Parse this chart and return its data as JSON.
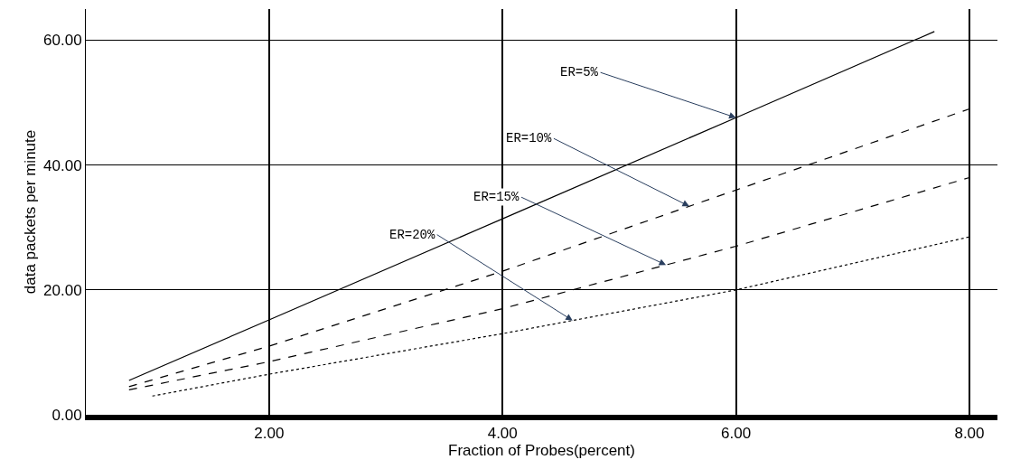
{
  "chart_data": {
    "type": "line",
    "xlabel": "Fraction of Probes(percent)",
    "ylabel": "data packets per minute",
    "xlim": [
      0.43,
      8.24
    ],
    "ylim": [
      0,
      65
    ],
    "xticks": [
      {
        "value": 2,
        "label": "2.00"
      },
      {
        "value": 4,
        "label": "4.00"
      },
      {
        "value": 6,
        "label": "6.00"
      },
      {
        "value": 8,
        "label": "8.00"
      }
    ],
    "yticks": [
      {
        "value": 0,
        "label": "0.00"
      },
      {
        "value": 20,
        "label": "20.00"
      },
      {
        "value": 40,
        "label": "40.00"
      },
      {
        "value": 60,
        "label": "60.00"
      }
    ],
    "grid": true,
    "marker": "none",
    "series": [
      {
        "color": "#000000",
        "line_style": "solid",
        "x": [
          0.8,
          2,
          4,
          6,
          7.7
        ],
        "values": [
          5.5,
          15.2,
          31.4,
          47.6,
          61.4
        ]
      },
      {
        "color": "#000000",
        "line_style": "dashed",
        "x": [
          0.8,
          2,
          4,
          6,
          8
        ],
        "values": [
          4.5,
          11,
          23,
          36,
          49
        ]
      },
      {
        "color": "#000000",
        "line_style": "dashed",
        "x": [
          0.8,
          2,
          4,
          6,
          8
        ],
        "values": [
          4,
          8.5,
          17,
          27,
          38
        ]
      },
      {
        "color": "#000000",
        "line_style": "dotted",
        "x": [
          1.0,
          2,
          4,
          6,
          8
        ],
        "values": [
          3,
          6.5,
          13,
          20,
          28.5
        ]
      }
    ],
    "annotations": [
      {
        "text": "ER=5%",
        "x": 6,
        "y": 47.6
      },
      {
        "text": "ER=10%",
        "x": 5.6,
        "y": 33.4
      },
      {
        "text": "ER=15%",
        "x": 5.4,
        "y": 24
      },
      {
        "text": "ER=20%",
        "x": 4.6,
        "y": 15.1
      }
    ]
  }
}
